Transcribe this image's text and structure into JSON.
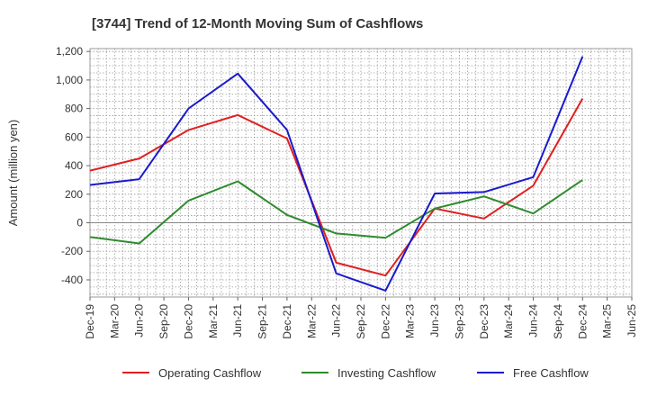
{
  "chart_data": {
    "type": "line",
    "title": "[3744]  Trend of 12-Month Moving Sum of Cashflows",
    "xlabel": "",
    "ylabel": "Amount (million yen)",
    "ylim": [
      -520,
      1220
    ],
    "yticks": [
      -400,
      -200,
      0,
      200,
      400,
      600,
      800,
      1000,
      1200
    ],
    "ytick_labels": [
      "-400",
      "-200",
      "0",
      "200",
      "400",
      "600",
      "800",
      "1,000",
      "1,200"
    ],
    "categories": [
      "Dec-19",
      "Mar-20",
      "Jun-20",
      "Sep-20",
      "Dec-20",
      "Mar-21",
      "Jun-21",
      "Sep-21",
      "Dec-21",
      "Mar-22",
      "Jun-22",
      "Sep-22",
      "Dec-22",
      "Mar-23",
      "Jun-23",
      "Sep-23",
      "Dec-23",
      "Mar-24",
      "Jun-24",
      "Sep-24",
      "Dec-24",
      "Mar-25",
      "Jun-25"
    ],
    "grid": true,
    "legend": "bottom",
    "series": [
      {
        "name": "Operating Cashflow",
        "color": "#e02020",
        "points": [
          {
            "x": "Dec-19",
            "y": 365
          },
          {
            "x": "Jun-20",
            "y": 450
          },
          {
            "x": "Dec-20",
            "y": 650
          },
          {
            "x": "Jun-21",
            "y": 755
          },
          {
            "x": "Dec-21",
            "y": 590
          },
          {
            "x": "Jun-22",
            "y": -280
          },
          {
            "x": "Dec-22",
            "y": -370
          },
          {
            "x": "Jun-23",
            "y": 100
          },
          {
            "x": "Dec-23",
            "y": 30
          },
          {
            "x": "Jun-24",
            "y": 260
          },
          {
            "x": "Dec-24",
            "y": 870
          }
        ]
      },
      {
        "name": "Investing Cashflow",
        "color": "#2e8b2e",
        "points": [
          {
            "x": "Dec-19",
            "y": -100
          },
          {
            "x": "Jun-20",
            "y": -145
          },
          {
            "x": "Dec-20",
            "y": 155
          },
          {
            "x": "Jun-21",
            "y": 290
          },
          {
            "x": "Dec-21",
            "y": 55
          },
          {
            "x": "Jun-22",
            "y": -75
          },
          {
            "x": "Dec-22",
            "y": -105
          },
          {
            "x": "Jun-23",
            "y": 100
          },
          {
            "x": "Dec-23",
            "y": 185
          },
          {
            "x": "Jun-24",
            "y": 65
          },
          {
            "x": "Dec-24",
            "y": 300
          }
        ]
      },
      {
        "name": "Free Cashflow",
        "color": "#1a1acc",
        "points": [
          {
            "x": "Dec-19",
            "y": 265
          },
          {
            "x": "Jun-20",
            "y": 305
          },
          {
            "x": "Dec-20",
            "y": 800
          },
          {
            "x": "Jun-21",
            "y": 1045
          },
          {
            "x": "Dec-21",
            "y": 650
          },
          {
            "x": "Jun-22",
            "y": -355
          },
          {
            "x": "Dec-22",
            "y": -475
          },
          {
            "x": "Jun-23",
            "y": 205
          },
          {
            "x": "Dec-23",
            "y": 215
          },
          {
            "x": "Jun-24",
            "y": 320
          },
          {
            "x": "Dec-24",
            "y": 1165
          }
        ]
      }
    ]
  }
}
